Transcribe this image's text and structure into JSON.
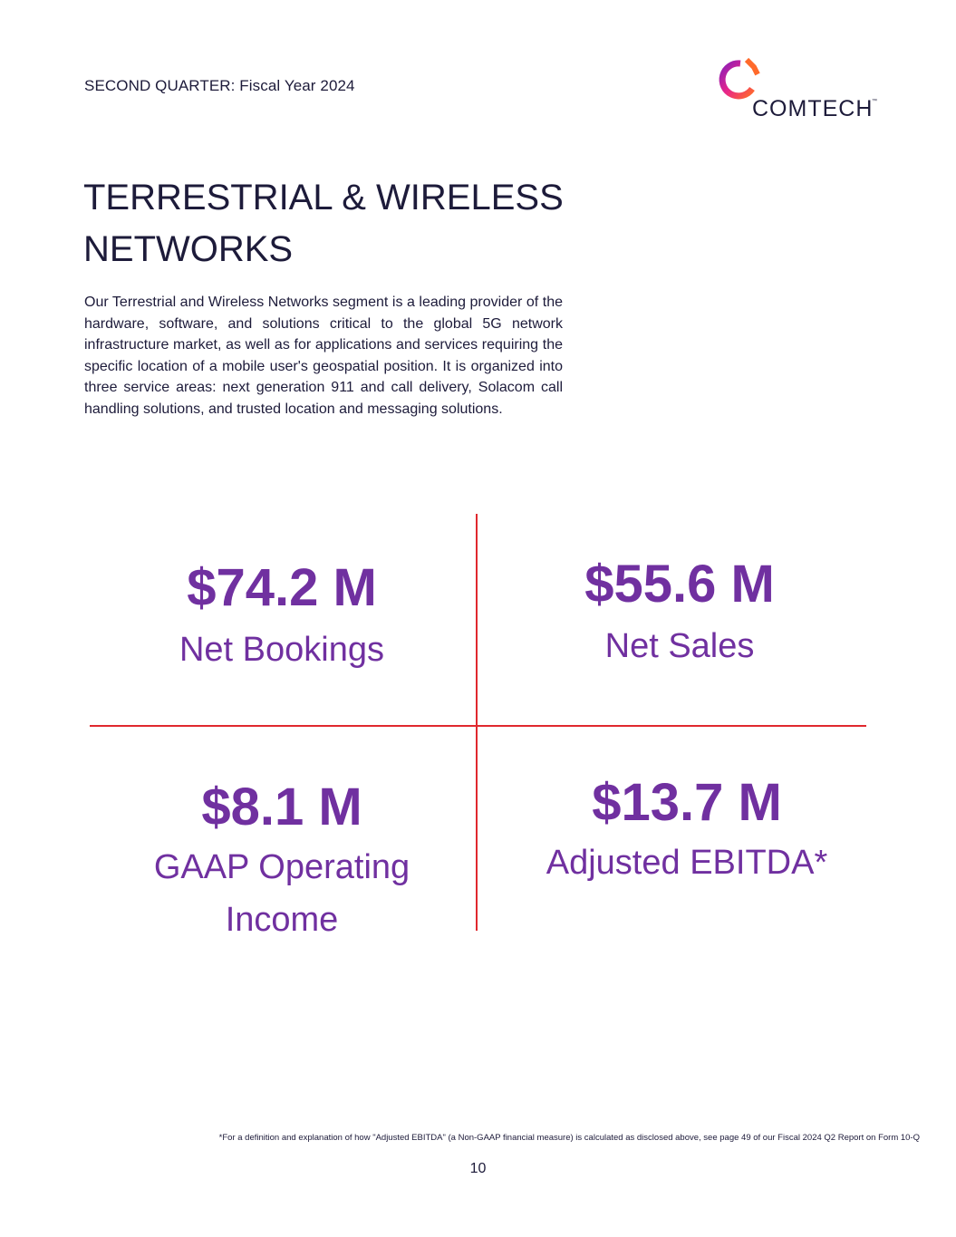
{
  "header": {
    "label": "SECOND QUARTER: Fiscal Year 2024"
  },
  "logo": {
    "text": "COMTECH",
    "trademark": "™",
    "colors": [
      "#ff6a2b",
      "#e8258a",
      "#8a1fb8"
    ]
  },
  "page": {
    "title": "TERRESTRIAL & WIRELESS NETWORKS",
    "description": "Our Terrestrial and Wireless Networks segment is a leading provider of the hardware, software, and solutions critical to the global 5G network infrastructure market, as well as for applications and services requiring the specific location of a mobile user's geospatial position. It is organized into three service areas: next generation 911 and call delivery, Solacom call handling solutions, and trusted location and messaging solutions."
  },
  "metrics": [
    {
      "value": "$74.2 M",
      "label": "Net Bookings"
    },
    {
      "value": "$55.6 M",
      "label": "Net Sales"
    },
    {
      "value": "$8.1 M",
      "label": "GAAP Operating Income"
    },
    {
      "value": "$13.7 M",
      "label": "Adjusted EBITDA*"
    }
  ],
  "colors": {
    "metric_text": "#7030a0",
    "divider": "#e0282e",
    "body_text": "#1d1b3a"
  },
  "footnote": "*For a definition and explanation of how \"Adjusted EBITDA\" (a Non-GAAP financial measure) is calculated as disclosed above, see page 49 of our Fiscal 2024 Q2 Report on Form 10-Q",
  "page_number": "10"
}
